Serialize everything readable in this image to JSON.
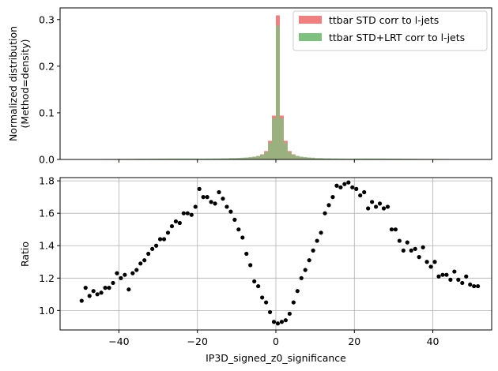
{
  "chart_data": [
    {
      "type": "bar",
      "panel": "top",
      "title": "",
      "xlabel": "",
      "ylabel_lines": [
        "Normalized distribution",
        "(Method=density)"
      ],
      "xlim": [
        -55,
        55
      ],
      "ylim": [
        0,
        0.325
      ],
      "xticks": [
        -40,
        -20,
        0,
        20,
        40
      ],
      "yticks": [
        0.0,
        0.1,
        0.2,
        0.3
      ],
      "ytick_labels": [
        "0.0",
        "0.1",
        "0.2",
        "0.3"
      ],
      "grid": false,
      "legend_position": "top-right",
      "bin_edges": [
        -50,
        -48,
        -46,
        -44,
        -42,
        -40,
        -38,
        -36,
        -34,
        -32,
        -30,
        -28,
        -26,
        -24,
        -22,
        -20,
        -18,
        -16,
        -14,
        -12,
        -10,
        -9,
        -8,
        -7,
        -6,
        -5,
        -4,
        -3,
        -2,
        -1,
        0,
        1,
        2,
        3,
        4,
        5,
        6,
        7,
        8,
        9,
        10,
        12,
        14,
        16,
        18,
        20,
        22,
        24,
        26,
        28,
        30,
        32,
        34,
        36,
        38,
        40,
        42,
        44,
        46,
        48,
        50
      ],
      "series": [
        {
          "name": "ttbar STD corr to l-jets",
          "color": "#f08080",
          "values": [
            0.0008,
            0.0008,
            0.0008,
            0.0009,
            0.0009,
            0.001,
            0.001,
            0.0011,
            0.0011,
            0.0012,
            0.0013,
            0.0013,
            0.0013,
            0.0012,
            0.0011,
            0.001,
            0.0011,
            0.0013,
            0.0016,
            0.0021,
            0.0024,
            0.0028,
            0.0034,
            0.0043,
            0.0056,
            0.0075,
            0.011,
            0.018,
            0.04,
            0.094,
            0.309,
            0.094,
            0.04,
            0.018,
            0.011,
            0.0075,
            0.0056,
            0.0043,
            0.0034,
            0.0028,
            0.0021,
            0.0016,
            0.0013,
            0.0011,
            0.001,
            0.0011,
            0.0012,
            0.0013,
            0.0013,
            0.0013,
            0.0012,
            0.0011,
            0.0011,
            0.001,
            0.001,
            0.0009,
            0.0009,
            0.0008,
            0.0008,
            0.0008
          ]
        },
        {
          "name": "ttbar STD+LRT corr to l-jets",
          "color": "#7ec07e",
          "values": [
            0.0008,
            0.0009,
            0.0009,
            0.001,
            0.0011,
            0.0012,
            0.0013,
            0.0015,
            0.0016,
            0.0018,
            0.0019,
            0.002,
            0.0021,
            0.0021,
            0.002,
            0.0019,
            0.002,
            0.0022,
            0.0025,
            0.003,
            0.0034,
            0.0038,
            0.0043,
            0.005,
            0.006,
            0.0075,
            0.01,
            0.016,
            0.036,
            0.088,
            0.287,
            0.088,
            0.036,
            0.016,
            0.01,
            0.0075,
            0.006,
            0.005,
            0.0043,
            0.0038,
            0.003,
            0.0025,
            0.0022,
            0.002,
            0.0019,
            0.002,
            0.0021,
            0.0021,
            0.002,
            0.0019,
            0.0018,
            0.0016,
            0.0015,
            0.0013,
            0.0012,
            0.0011,
            0.001,
            0.0009,
            0.0009,
            0.0008
          ]
        }
      ]
    },
    {
      "type": "scatter",
      "panel": "bottom",
      "title": "",
      "xlabel": "IP3D_signed_z0_significance",
      "ylabel": "Ratio",
      "xlim": [
        -55,
        55
      ],
      "ylim": [
        0.88,
        1.82
      ],
      "xticks": [
        -40,
        -20,
        0,
        20,
        40
      ],
      "xtick_labels": [
        "−40",
        "−20",
        "0",
        "20",
        "40"
      ],
      "yticks": [
        1.0,
        1.2,
        1.4,
        1.6,
        1.8
      ],
      "ytick_labels": [
        "1.0",
        "1.2",
        "1.4",
        "1.6",
        "1.8"
      ],
      "grid": true,
      "marker_color": "#000000",
      "points": [
        [
          -49.5,
          1.06
        ],
        [
          -48.5,
          1.14
        ],
        [
          -47.5,
          1.09
        ],
        [
          -46.5,
          1.12
        ],
        [
          -45.5,
          1.1
        ],
        [
          -44.5,
          1.11
        ],
        [
          -43.5,
          1.14
        ],
        [
          -42.5,
          1.14
        ],
        [
          -41.5,
          1.17
        ],
        [
          -40.5,
          1.23
        ],
        [
          -39.5,
          1.2
        ],
        [
          -38.5,
          1.22
        ],
        [
          -37.5,
          1.13
        ],
        [
          -36.5,
          1.23
        ],
        [
          -35.5,
          1.25
        ],
        [
          -34.5,
          1.29
        ],
        [
          -33.5,
          1.31
        ],
        [
          -32.5,
          1.35
        ],
        [
          -31.5,
          1.38
        ],
        [
          -30.5,
          1.4
        ],
        [
          -29.5,
          1.44
        ],
        [
          -28.5,
          1.44
        ],
        [
          -27.5,
          1.48
        ],
        [
          -26.5,
          1.52
        ],
        [
          -25.5,
          1.55
        ],
        [
          -24.5,
          1.54
        ],
        [
          -23.5,
          1.6
        ],
        [
          -22.5,
          1.6
        ],
        [
          -21.5,
          1.59
        ],
        [
          -20.5,
          1.64
        ],
        [
          -19.5,
          1.75
        ],
        [
          -18.5,
          1.7
        ],
        [
          -17.5,
          1.7
        ],
        [
          -16.5,
          1.67
        ],
        [
          -15.5,
          1.66
        ],
        [
          -14.5,
          1.73
        ],
        [
          -13.5,
          1.69
        ],
        [
          -12.5,
          1.64
        ],
        [
          -11.5,
          1.61
        ],
        [
          -10.5,
          1.56
        ],
        [
          -9.5,
          1.5
        ],
        [
          -8.5,
          1.45
        ],
        [
          -7.5,
          1.35
        ],
        [
          -6.5,
          1.28
        ],
        [
          -5.5,
          1.18
        ],
        [
          -4.5,
          1.15
        ],
        [
          -3.5,
          1.08
        ],
        [
          -2.5,
          1.05
        ],
        [
          -1.5,
          0.99
        ],
        [
          -0.5,
          0.93
        ],
        [
          0.5,
          0.92
        ],
        [
          1.5,
          0.93
        ],
        [
          2.5,
          0.94
        ],
        [
          3.5,
          0.98
        ],
        [
          4.5,
          1.05
        ],
        [
          5.5,
          1.12
        ],
        [
          6.5,
          1.2
        ],
        [
          7.5,
          1.25
        ],
        [
          8.5,
          1.31
        ],
        [
          9.5,
          1.37
        ],
        [
          10.5,
          1.43
        ],
        [
          11.5,
          1.48
        ],
        [
          12.5,
          1.6
        ],
        [
          13.5,
          1.65
        ],
        [
          14.5,
          1.7
        ],
        [
          15.5,
          1.77
        ],
        [
          16.5,
          1.76
        ],
        [
          17.5,
          1.78
        ],
        [
          18.5,
          1.79
        ],
        [
          19.5,
          1.76
        ],
        [
          20.5,
          1.75
        ],
        [
          21.5,
          1.71
        ],
        [
          22.5,
          1.73
        ],
        [
          23.5,
          1.63
        ],
        [
          24.5,
          1.67
        ],
        [
          25.5,
          1.64
        ],
        [
          26.5,
          1.66
        ],
        [
          27.5,
          1.63
        ],
        [
          28.5,
          1.64
        ],
        [
          29.5,
          1.5
        ],
        [
          30.5,
          1.5
        ],
        [
          31.5,
          1.43
        ],
        [
          32.5,
          1.37
        ],
        [
          33.5,
          1.42
        ],
        [
          34.5,
          1.37
        ],
        [
          35.5,
          1.38
        ],
        [
          36.5,
          1.33
        ],
        [
          37.5,
          1.39
        ],
        [
          38.5,
          1.3
        ],
        [
          39.5,
          1.27
        ],
        [
          40.5,
          1.3
        ],
        [
          41.5,
          1.21
        ],
        [
          42.5,
          1.22
        ],
        [
          43.5,
          1.22
        ],
        [
          44.5,
          1.19
        ],
        [
          45.5,
          1.24
        ],
        [
          46.5,
          1.19
        ],
        [
          47.5,
          1.17
        ],
        [
          48.5,
          1.21
        ],
        [
          49.5,
          1.16
        ],
        [
          50.5,
          1.15
        ],
        [
          51.5,
          1.15
        ]
      ]
    }
  ]
}
